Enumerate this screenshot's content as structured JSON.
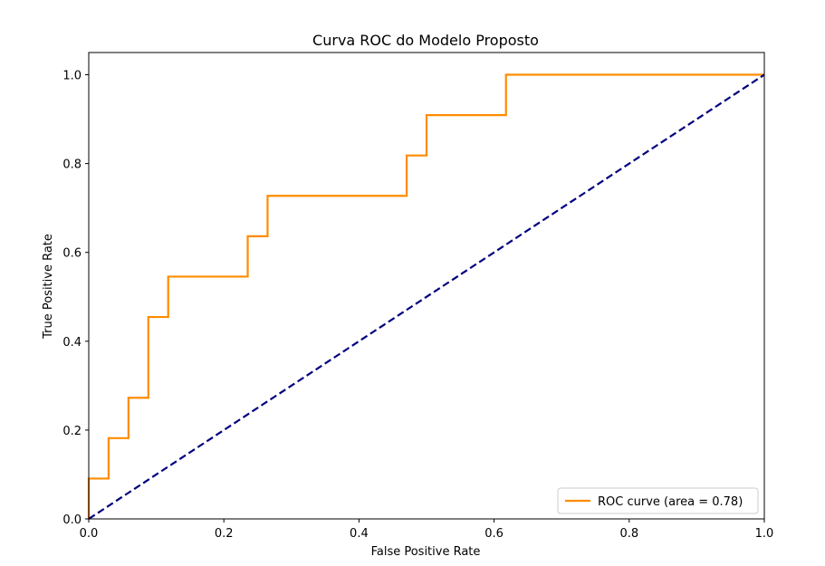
{
  "chart_data": {
    "type": "line",
    "title": "Curva ROC do Modelo Proposto",
    "xlabel": "False Positive Rate",
    "ylabel": "True Positive Rate",
    "xlim": [
      0.0,
      1.0
    ],
    "ylim": [
      0.0,
      1.05
    ],
    "xticks": [
      0.0,
      0.2,
      0.4,
      0.6,
      0.8,
      1.0
    ],
    "xtick_labels": [
      "0.0",
      "0.2",
      "0.4",
      "0.6",
      "0.8",
      "1.0"
    ],
    "yticks": [
      0.0,
      0.2,
      0.4,
      0.6,
      0.8,
      1.0
    ],
    "ytick_labels": [
      "0.0",
      "0.2",
      "0.4",
      "0.6",
      "0.8",
      "1.0"
    ],
    "grid": false,
    "legend_position": "lower-right",
    "series": [
      {
        "name": "ROC curve (area = 0.78)",
        "color": "#ff8c00",
        "style": "solid",
        "x": [
          0.0,
          0.0,
          0.0294,
          0.0294,
          0.0588,
          0.0588,
          0.0882,
          0.0882,
          0.1176,
          0.1176,
          0.2353,
          0.2353,
          0.2647,
          0.2647,
          0.4706,
          0.4706,
          0.5,
          0.5,
          0.6176,
          0.6176,
          1.0
        ],
        "y": [
          0.0,
          0.0909,
          0.0909,
          0.1818,
          0.1818,
          0.2727,
          0.2727,
          0.4545,
          0.4545,
          0.5455,
          0.5455,
          0.6364,
          0.6364,
          0.7273,
          0.7273,
          0.8182,
          0.8182,
          0.9091,
          0.9091,
          1.0,
          1.0
        ]
      },
      {
        "name": "",
        "color": "#000080",
        "style": "dashed",
        "x": [
          0.0,
          1.0
        ],
        "y": [
          0.0,
          1.0
        ]
      }
    ]
  }
}
